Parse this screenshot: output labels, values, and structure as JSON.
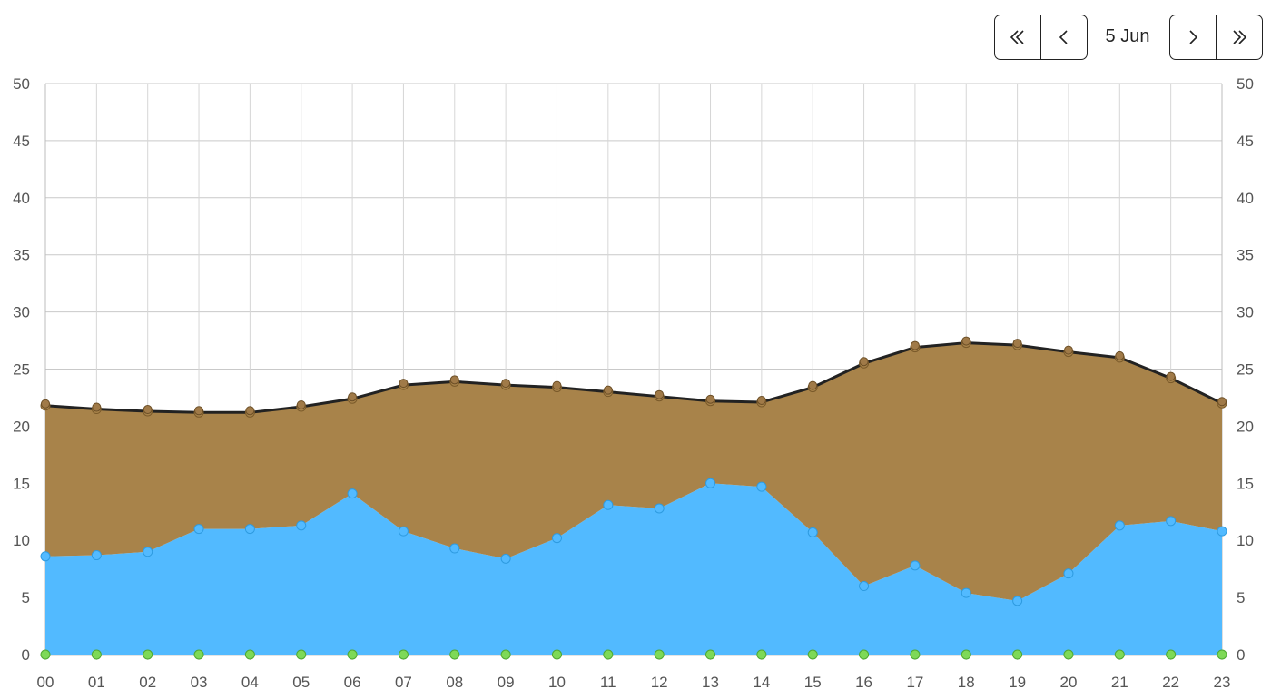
{
  "navigation": {
    "date_label": "5 Jun",
    "buttons": [
      "double-chevron-left-icon",
      "chevron-left-icon",
      "chevron-right-icon",
      "double-chevron-right-icon"
    ]
  },
  "chart_data": {
    "type": "area",
    "x": [
      "00",
      "01",
      "02",
      "03",
      "04",
      "05",
      "06",
      "07",
      "08",
      "09",
      "10",
      "11",
      "12",
      "13",
      "14",
      "15",
      "16",
      "17",
      "18",
      "19",
      "20",
      "21",
      "22",
      "23"
    ],
    "ylim": [
      0,
      50
    ],
    "yticks": [
      0,
      5,
      10,
      15,
      20,
      25,
      30,
      35,
      40,
      45,
      50
    ],
    "grid": true,
    "stacked": true,
    "series": [
      {
        "color": "#7ed957",
        "values": [
          0,
          0,
          0,
          0,
          0,
          0,
          0,
          0,
          0,
          0,
          0,
          0,
          0,
          0,
          0,
          0,
          0,
          0,
          0,
          0,
          0,
          0,
          0,
          0
        ]
      },
      {
        "color": "#52baff",
        "values": [
          8.6,
          8.7,
          9.0,
          11.0,
          11.0,
          11.3,
          14.1,
          10.8,
          9.3,
          8.4,
          10.2,
          13.1,
          12.8,
          15.0,
          14.7,
          10.7,
          6.0,
          7.8,
          5.4,
          4.7,
          7.1,
          11.3,
          11.7,
          10.8
        ]
      },
      {
        "color": "#a8834a",
        "values": [
          13.2,
          12.8,
          12.3,
          10.2,
          10.2,
          10.4,
          8.3,
          12.8,
          14.6,
          15.2,
          13.2,
          9.9,
          9.8,
          7.2,
          7.4,
          12.7,
          19.5,
          19.1,
          21.9,
          22.4,
          19.4,
          14.7,
          12.5,
          11.2
        ]
      }
    ],
    "total_line": {
      "color": "#222222",
      "values": [
        21.8,
        21.5,
        21.3,
        21.2,
        21.2,
        21.7,
        22.4,
        23.6,
        23.9,
        23.6,
        23.4,
        23.0,
        22.6,
        22.2,
        22.1,
        23.4,
        25.5,
        26.9,
        27.3,
        27.1,
        26.5,
        26.0,
        24.2,
        22.0
      ]
    }
  }
}
